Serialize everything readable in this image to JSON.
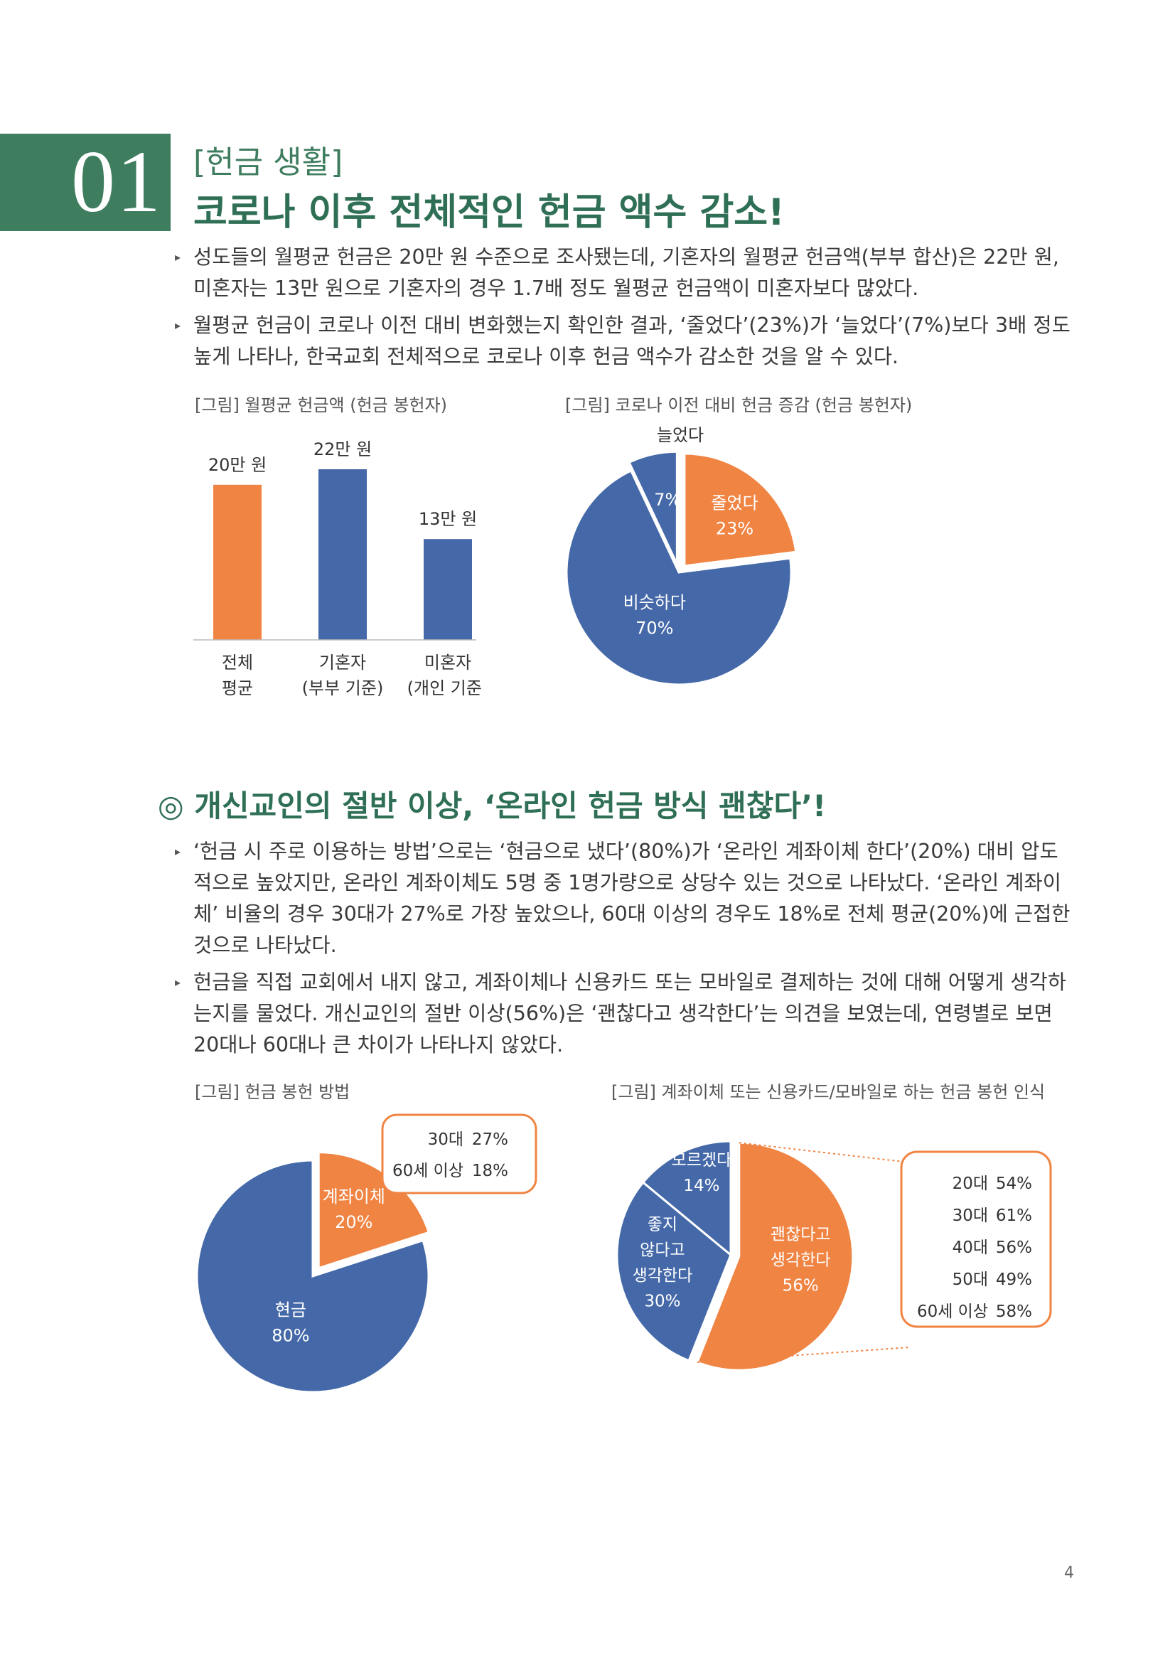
{
  "section": {
    "number": "01",
    "kicker": "[헌금 생활]",
    "title": "코로나 이후 전체적인 헌금 액수 감소!"
  },
  "bullets_1": [
    "성도들의 월평균 헌금은 20만 원 수준으로 조사됐는데, 기혼자의 월평균 헌금액(부부 합산)은 22만 원, 미혼자는 13만 원으로 기혼자의 경우 1.7배 정도 월평균 헌금액이 미혼자보다 많았다.",
    "월평균 헌금이 코로나 이전 대비 변화했는지 확인한 결과, ‘줄었다’(23%)가 ‘늘었다’(7%)보다 3배 정도 높게 나타나, 한국교회 전체적으로 코로나 이후 헌금 액수가 감소한 것을 알 수 있다."
  ],
  "figure1_caption": "[그림] 월평균 헌금액 (헌금 봉헌자)",
  "figure2_caption": "[그림] 코로나 이전 대비 헌금 증감 (헌금 봉헌자)",
  "sub_heading": {
    "symbol": "◎",
    "text": "개신교인의 절반 이상, ‘온라인 헌금 방식 괜찮다’!"
  },
  "bullets_2": [
    "‘헌금 시 주로 이용하는 방법’으로는 ‘현금으로 냈다’(80%)가 ‘온라인 계좌이체 한다’(20%) 대비 압도적으로 높았지만, 온라인 계좌이체도 5명 중 1명가량으로 상당수 있는 것으로 나타났다. ‘온라인 계좌이체’ 비율의 경우 30대가 27%로 가장 높았으나, 60대 이상의 경우도 18%로 전체 평균(20%)에 근접한 것으로 나타났다.",
    "헌금을 직접 교회에서 내지 않고, 계좌이체나 신용카드 또는 모바일로 결제하는 것에 대해 어떻게 생각하는지를 물었다. 개신교인의 절반 이상(56%)은 ‘괜찮다고 생각한다’는 의견을 보였는데, 연령별로 보면 20대나 60대나 큰 차이가 나타나지 않았다."
  ],
  "figure3_caption": "[그림] 헌금 봉헌 방법",
  "figure4_caption": "[그림] 계좌이체 또는 신용카드/모바일로 하는 헌금 봉헌 인식",
  "page_number": "4",
  "colors": {
    "orange": "#f08443",
    "blue": "#4569a8",
    "green": "#3f7d5f"
  },
  "chart_data": [
    {
      "type": "bar",
      "categories": [
        "전체 평균",
        "기혼자 (부부 기준)",
        "미혼자 (개인 기준)"
      ],
      "category_lines": [
        [
          "전체",
          "평균"
        ],
        [
          "기혼자",
          "(부부 기준)"
        ],
        [
          "미혼자",
          "(개인 기준)"
        ]
      ],
      "values": [
        20,
        22,
        13
      ],
      "value_labels": [
        "20만 원",
        "22만 원",
        "13만 원"
      ],
      "bar_colors": [
        "#f08443",
        "#4569a8",
        "#4569a8"
      ],
      "ylim": [
        0,
        22
      ]
    },
    {
      "type": "pie",
      "slices": [
        {
          "label": "늘었다",
          "value": 7,
          "value_label": "7%",
          "color": "#4569a8",
          "exploded": true
        },
        {
          "label": "줄었다",
          "value": 23,
          "value_label": "23%",
          "color": "#f08443",
          "exploded": true
        },
        {
          "label": "비슷하다",
          "value": 70,
          "value_label": "70%",
          "color": "#4569a8",
          "exploded": false
        }
      ]
    },
    {
      "type": "pie",
      "slices": [
        {
          "label": "계좌이체",
          "value": 20,
          "value_label": "20%",
          "color": "#f08443",
          "exploded": true
        },
        {
          "label": "현금",
          "value": 80,
          "value_label": "80%",
          "color": "#4569a8",
          "exploded": false
        }
      ],
      "callout": [
        {
          "group": "30대",
          "value": 27,
          "value_label": "27%"
        },
        {
          "group": "60세 이상",
          "value": 18,
          "value_label": "18%"
        }
      ]
    },
    {
      "type": "pie",
      "slices": [
        {
          "label": "괜찮다고 생각한다",
          "label_lines": [
            "괜찮다고",
            "생각한다"
          ],
          "value": 56,
          "value_label": "56%",
          "color": "#f08443"
        },
        {
          "label": "좋지 않다고 생각한다",
          "label_lines": [
            "좋지",
            "않다고",
            "생각한다"
          ],
          "value": 30,
          "value_label": "30%",
          "color": "#4569a8"
        },
        {
          "label": "모르겠다",
          "label_lines": [
            "모르겠다"
          ],
          "value": 14,
          "value_label": "14%",
          "color": "#4569a8"
        }
      ],
      "callout": [
        {
          "group": "20대",
          "value": 54,
          "value_label": "54%"
        },
        {
          "group": "30대",
          "value": 61,
          "value_label": "61%"
        },
        {
          "group": "40대",
          "value": 56,
          "value_label": "56%"
        },
        {
          "group": "50대",
          "value": 49,
          "value_label": "49%"
        },
        {
          "group": "60세 이상",
          "value": 58,
          "value_label": "58%"
        }
      ]
    }
  ]
}
